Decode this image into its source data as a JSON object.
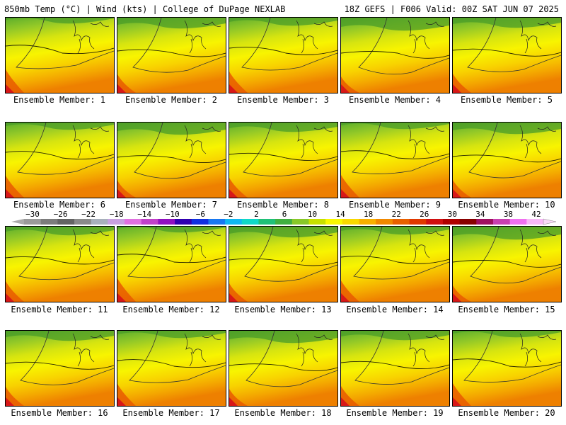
{
  "header": {
    "left": "850mb Temp (°C) | Wind (kts) | College of DuPage NEXLAB",
    "right": "18Z GEFS | F006 Valid: 00Z SAT JUN 07 2025"
  },
  "members": [
    "Ensemble Member: 1",
    "Ensemble Member: 2",
    "Ensemble Member: 3",
    "Ensemble Member: 4",
    "Ensemble Member: 5",
    "Ensemble Member: 6",
    "Ensemble Member: 7",
    "Ensemble Member: 8",
    "Ensemble Member: 9",
    "Ensemble Member: 10",
    "Ensemble Member: 11",
    "Ensemble Member: 12",
    "Ensemble Member: 13",
    "Ensemble Member: 14",
    "Ensemble Member: 15",
    "Ensemble Member: 16",
    "Ensemble Member: 17",
    "Ensemble Member: 18",
    "Ensemble Member: 19",
    "Ensemble Member: 20"
  ],
  "colorbar": {
    "ticks": [
      "−30",
      "−26",
      "−22",
      "−18",
      "−14",
      "−10",
      "−6",
      "−2",
      "2",
      "6",
      "10",
      "14",
      "18",
      "22",
      "26",
      "30",
      "34",
      "38",
      "42"
    ],
    "colors": [
      "#9a9a9a",
      "#7c7c7c",
      "#646464",
      "#8a8a8a",
      "#a8b0bc",
      "#c8a0e0",
      "#e070e0",
      "#c040c8",
      "#9010c0",
      "#3000b0",
      "#1030e0",
      "#1878f0",
      "#10b8f0",
      "#10d8c8",
      "#20c078",
      "#40b040",
      "#88c828",
      "#c8e000",
      "#f8f800",
      "#f8d800",
      "#f8b000",
      "#f08800",
      "#e86000",
      "#e03800",
      "#d01010",
      "#b00000",
      "#880000",
      "#a01060",
      "#c840b0",
      "#f070f0",
      "#f8b8f8"
    ]
  }
}
